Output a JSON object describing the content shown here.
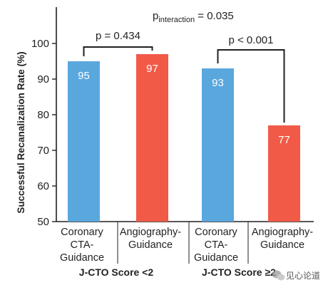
{
  "chart_data": {
    "type": "bar",
    "ylabel": "Successful Recanalization Rate (%)",
    "ylim": [
      50,
      100
    ],
    "yticks": [
      "50",
      "60",
      "70",
      "80",
      "90",
      "100"
    ],
    "grid": false,
    "categories": [
      [
        "Coronary",
        "CTA-",
        "Guidance"
      ],
      [
        "Angiography-",
        "Guidance"
      ],
      [
        "Coronary",
        "CTA-",
        "Guidance"
      ],
      [
        "Angiography-",
        "Guidance"
      ]
    ],
    "values": [
      95,
      97,
      93,
      77
    ],
    "value_labels": [
      "95",
      "97",
      "93",
      "77"
    ],
    "colors": [
      "#5aa7de",
      "#f05a47",
      "#5aa7de",
      "#f05a47"
    ],
    "groups": [
      {
        "label": "J-CTO Score <2",
        "bars": [
          0,
          1
        ]
      },
      {
        "label": "J-CTO Score ≥2",
        "bars": [
          2,
          3
        ]
      }
    ],
    "annotations": {
      "interaction": {
        "main": "p",
        "sub": "interaction",
        "rest": " = 0.035"
      },
      "group1_p": "p = 0.434",
      "group2_p": "p < 0.001"
    }
  },
  "watermark": {
    "text": "见心论道",
    "icon": "wechat-icon"
  }
}
